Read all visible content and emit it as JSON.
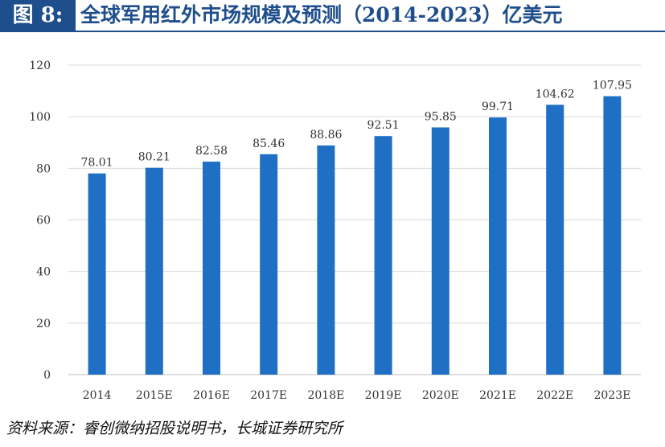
{
  "figure": {
    "label": "图 8:",
    "title": "全球军用红外市场规模及预测（2014-2023）亿美元",
    "source": "资料来源：睿创微纳招股说明书，长城证券研究所"
  },
  "colors": {
    "bar": "#1f6fc4",
    "title": "#1f4e8c",
    "grid": "#d9d9d9",
    "axis": "#bfbfbf",
    "text": "#333333"
  },
  "chart_data": {
    "type": "bar",
    "categories": [
      "2014",
      "2015E",
      "2016E",
      "2017E",
      "2018E",
      "2019E",
      "2020E",
      "2021E",
      "2022E",
      "2023E"
    ],
    "values": [
      78.01,
      80.21,
      82.58,
      85.46,
      88.86,
      92.51,
      95.85,
      99.71,
      104.62,
      107.95
    ],
    "data_labels": [
      "78.01",
      "80.21",
      "82.58",
      "85.46",
      "88.86",
      "92.51",
      "95.85",
      "99.71",
      "104.62",
      "107.95"
    ],
    "ylim": [
      0,
      120
    ],
    "yticks": [
      0,
      20,
      40,
      60,
      80,
      100,
      120
    ],
    "grid": true,
    "legend": "none"
  }
}
